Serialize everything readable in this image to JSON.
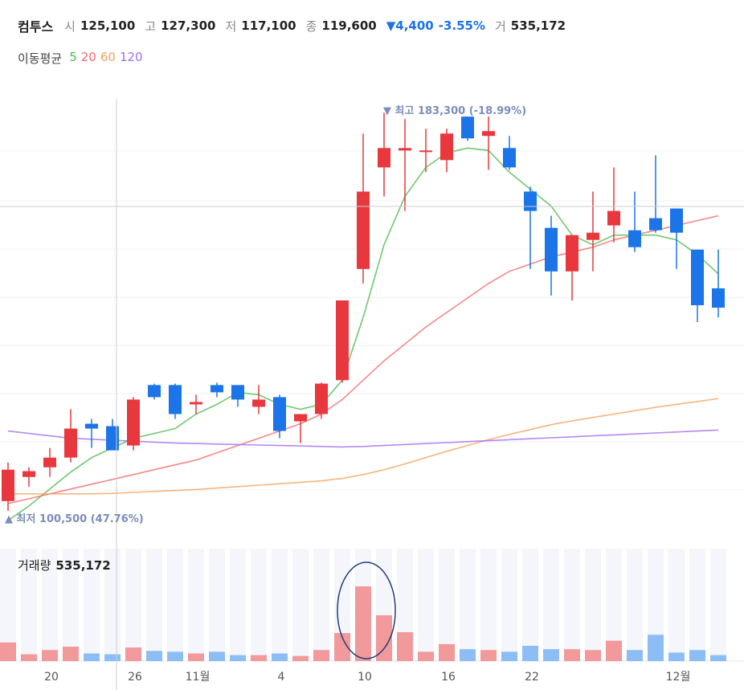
{
  "header": {
    "name": "컴투스",
    "open_label": "시",
    "open": "125,100",
    "high_label": "고",
    "high": "127,300",
    "low_label": "저",
    "low": "117,100",
    "close_label": "종",
    "close": "119,600",
    "change": "▼4,400",
    "change_pct": "-3.55%",
    "volume_label": "거",
    "volume": "535,172"
  },
  "ma_legend": {
    "title": "이동평균",
    "items": [
      {
        "label": "5",
        "color": "#4cbb4c"
      },
      {
        "label": "20",
        "color": "#f26a6a"
      },
      {
        "label": "60",
        "color": "#f5a35c"
      },
      {
        "label": "120",
        "color": "#a36cf0"
      }
    ]
  },
  "colors": {
    "up": "#e8383d",
    "down": "#1b74e8",
    "vol_up": "#f1999b",
    "vol_down": "#8dbdf5",
    "annotation": "#7b8db8"
  },
  "annotations": {
    "high": "▼ 최고 183,300 (-18.99%)",
    "low": "▲ 최저 100,500 (47.76%)"
  },
  "volume_panel": {
    "title": "거래량",
    "value": "535,172"
  },
  "chart_data": {
    "type": "candlestick",
    "y_range": [
      97000,
      190000
    ],
    "x_tick_labels": [
      {
        "label": "20",
        "index": 2
      },
      {
        "label": "26",
        "index": 6
      },
      {
        "label": "11월",
        "index": 9
      },
      {
        "label": "4",
        "index": 13
      },
      {
        "label": "10",
        "index": 17
      },
      {
        "label": "16",
        "index": 21
      },
      {
        "label": "22",
        "index": 25
      },
      {
        "label": "12월",
        "index": 32
      }
    ],
    "candles": [
      {
        "o": 103000,
        "h": 111000,
        "l": 101000,
        "c": 109500,
        "v": 22
      },
      {
        "o": 108000,
        "h": 110000,
        "l": 106000,
        "c": 109200,
        "v": 8
      },
      {
        "o": 110000,
        "h": 114000,
        "l": 108000,
        "c": 112000,
        "v": 13
      },
      {
        "o": 112000,
        "h": 122000,
        "l": 111000,
        "c": 118000,
        "v": 17
      },
      {
        "o": 119000,
        "h": 120000,
        "l": 114000,
        "c": 118000,
        "v": 9
      },
      {
        "o": 118500,
        "h": 120000,
        "l": 114000,
        "c": 113500,
        "v": 8
      },
      {
        "o": 114500,
        "h": 124500,
        "l": 113500,
        "c": 124000,
        "v": 16
      },
      {
        "o": 127000,
        "h": 127300,
        "l": 124000,
        "c": 124500,
        "v": 12
      },
      {
        "o": 127000,
        "h": 127300,
        "l": 120000,
        "c": 121000,
        "v": 11
      },
      {
        "o": 123000,
        "h": 125000,
        "l": 121000,
        "c": 123500,
        "v": 9
      },
      {
        "o": 127000,
        "h": 127500,
        "l": 124500,
        "c": 125500,
        "v": 11
      },
      {
        "o": 127000,
        "h": 127000,
        "l": 122500,
        "c": 124000,
        "v": 7
      },
      {
        "o": 122500,
        "h": 127000,
        "l": 121000,
        "c": 124000,
        "v": 7
      },
      {
        "o": 124500,
        "h": 125000,
        "l": 116000,
        "c": 117500,
        "v": 9
      },
      {
        "o": 119500,
        "h": 121000,
        "l": 115000,
        "c": 121000,
        "v": 6
      },
      {
        "o": 121000,
        "h": 127500,
        "l": 120000,
        "c": 127300,
        "v": 13
      },
      {
        "o": 128000,
        "h": 144500,
        "l": 127500,
        "c": 144500,
        "v": 33
      },
      {
        "o": 151000,
        "h": 179000,
        "l": 148000,
        "c": 167000,
        "v": 88
      },
      {
        "o": 172000,
        "h": 183300,
        "l": 166000,
        "c": 176000,
        "v": 54
      },
      {
        "o": 175500,
        "h": 182000,
        "l": 163000,
        "c": 176000,
        "v": 34
      },
      {
        "o": 175500,
        "h": 180000,
        "l": 171000,
        "c": 175500,
        "v": 11
      },
      {
        "o": 173500,
        "h": 180000,
        "l": 171000,
        "c": 179000,
        "v": 20
      },
      {
        "o": 182500,
        "h": 182500,
        "l": 177500,
        "c": 178000,
        "v": 14
      },
      {
        "o": 178500,
        "h": 182500,
        "l": 171500,
        "c": 179500,
        "v": 13
      },
      {
        "o": 176000,
        "h": 178500,
        "l": 171500,
        "c": 172000,
        "v": 11
      },
      {
        "o": 167000,
        "h": 168000,
        "l": 151000,
        "c": 163000,
        "v": 18
      },
      {
        "o": 159500,
        "h": 162000,
        "l": 145500,
        "c": 150500,
        "v": 14
      },
      {
        "o": 150500,
        "h": 158000,
        "l": 144500,
        "c": 158000,
        "v": 14
      },
      {
        "o": 157000,
        "h": 167000,
        "l": 150500,
        "c": 158500,
        "v": 13
      },
      {
        "o": 160000,
        "h": 172000,
        "l": 156500,
        "c": 163000,
        "v": 24
      },
      {
        "o": 159000,
        "h": 167000,
        "l": 154500,
        "c": 155500,
        "v": 13
      },
      {
        "o": 161500,
        "h": 174500,
        "l": 158500,
        "c": 159000,
        "v": 31
      },
      {
        "o": 163500,
        "h": 163500,
        "l": 151000,
        "c": 158500,
        "v": 10
      },
      {
        "o": 155000,
        "h": 155000,
        "l": 140000,
        "c": 143500,
        "v": 13
      },
      {
        "o": 147000,
        "h": 155000,
        "l": 141000,
        "c": 143000,
        "v": 7
      }
    ],
    "moving_averages": [
      {
        "name": "5",
        "values": [
          99000,
          102000,
          105500,
          109000,
          112000,
          114000,
          116000,
          117000,
          118000,
          121000,
          123000,
          125500,
          125000,
          123000,
          122000,
          123000,
          128000,
          141000,
          156000,
          166000,
          172000,
          175000,
          176000,
          175500,
          171000,
          167500,
          164000,
          158000,
          156000,
          158000,
          158000,
          158000,
          157000,
          154000,
          150000
        ]
      },
      {
        "name": "20",
        "values": [
          102500,
          103500,
          104500,
          105500,
          106500,
          107500,
          108500,
          109500,
          110500,
          111500,
          113000,
          114500,
          116000,
          117500,
          119000,
          121000,
          124000,
          128000,
          132000,
          135500,
          139000,
          142000,
          145000,
          148000,
          150500,
          152000,
          153500,
          154500,
          155500,
          157000,
          158000,
          159000,
          160000,
          161000,
          162000
        ]
      },
      {
        "name": "60",
        "values": [
          104500,
          104500,
          104500,
          104500,
          104500,
          104600,
          104800,
          105000,
          105200,
          105400,
          105700,
          106000,
          106300,
          106600,
          106900,
          107200,
          107700,
          108500,
          109500,
          110700,
          112000,
          113300,
          114500,
          115700,
          116800,
          117800,
          118800,
          119600,
          120300,
          121000,
          121700,
          122400,
          123000,
          123600,
          124200
        ]
      },
      {
        "name": "120",
        "values": [
          117500,
          117000,
          116500,
          116000,
          115800,
          115600,
          115400,
          115200,
          115000,
          114900,
          114800,
          114700,
          114600,
          114500,
          114400,
          114300,
          114200,
          114300,
          114500,
          114700,
          114900,
          115100,
          115300,
          115500,
          115700,
          115900,
          116100,
          116300,
          116500,
          116700,
          116900,
          117100,
          117300,
          117500,
          117700
        ]
      }
    ]
  }
}
